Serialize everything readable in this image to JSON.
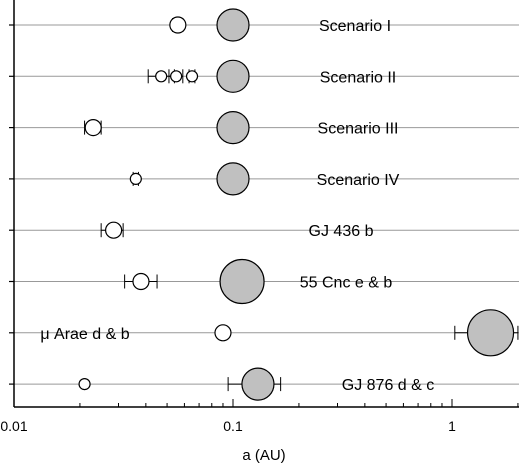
{
  "chart_data": {
    "type": "scatter",
    "title": "",
    "xlabel": "a (AU)",
    "ylabel": "",
    "xscale": "log",
    "xlim": [
      0.01,
      3.0
    ],
    "xticks": [
      {
        "value": 0.01,
        "label": "0.01"
      },
      {
        "value": 0.1,
        "label": "0.1"
      },
      {
        "value": 1,
        "label": "1"
      }
    ],
    "grid": "horizontal row lines",
    "legend": "none",
    "colors": {
      "small_planet_fill": "#ffffff",
      "large_planet_fill": "#c0c0c0",
      "stroke": "#000000",
      "row_line": "#999999"
    },
    "rows": [
      {
        "label": "Scenario I",
        "inner": [
          {
            "a": 0.056,
            "size": "small",
            "err": [
              0.053,
              0.059
            ]
          }
        ],
        "outer": {
          "a": 0.1,
          "size": "medium",
          "err": null
        }
      },
      {
        "label": "Scenario II",
        "inner": [
          {
            "a": 0.047,
            "size": "tiny",
            "err": [
              0.041,
              0.054
            ]
          },
          {
            "a": 0.055,
            "size": "tiny",
            "err": [
              0.051,
              0.059
            ]
          },
          {
            "a": 0.065,
            "size": "tiny",
            "err": [
              0.063,
              0.067
            ]
          }
        ],
        "outer": {
          "a": 0.1,
          "size": "medium",
          "err": null
        }
      },
      {
        "label": "Scenario III",
        "inner": [
          {
            "a": 0.023,
            "size": "small",
            "err": [
              0.021,
              0.025
            ]
          }
        ],
        "outer": {
          "a": 0.1,
          "size": "medium",
          "err": null
        }
      },
      {
        "label": "Scenario IV",
        "inner": [
          {
            "a": 0.036,
            "size": "tiny",
            "err": [
              0.035,
              0.037
            ]
          }
        ],
        "outer": {
          "a": 0.1,
          "size": "medium",
          "err": null
        }
      },
      {
        "label": "GJ 436 b",
        "inner": [
          {
            "a": 0.0285,
            "size": "small",
            "err": [
              0.025,
              0.0315
            ]
          }
        ],
        "outer": null
      },
      {
        "label": "55 Cnc e & b",
        "inner": [
          {
            "a": 0.038,
            "size": "small",
            "err": [
              0.032,
              0.045
            ]
          }
        ],
        "outer": {
          "a": 0.11,
          "size": "large",
          "err": null
        }
      },
      {
        "label": "μ Arae d & b",
        "inner": [
          {
            "a": 0.09,
            "size": "small",
            "err": null
          }
        ],
        "outer": {
          "a": 1.5,
          "size": "xlarge",
          "err": [
            1.03,
            2.0
          ]
        }
      },
      {
        "label": "GJ 876 d & c",
        "inner": [
          {
            "a": 0.021,
            "size": "tiny",
            "err": null
          }
        ],
        "outer": {
          "a": 0.13,
          "size": "medium",
          "err": [
            0.095,
            0.165
          ]
        }
      }
    ]
  }
}
